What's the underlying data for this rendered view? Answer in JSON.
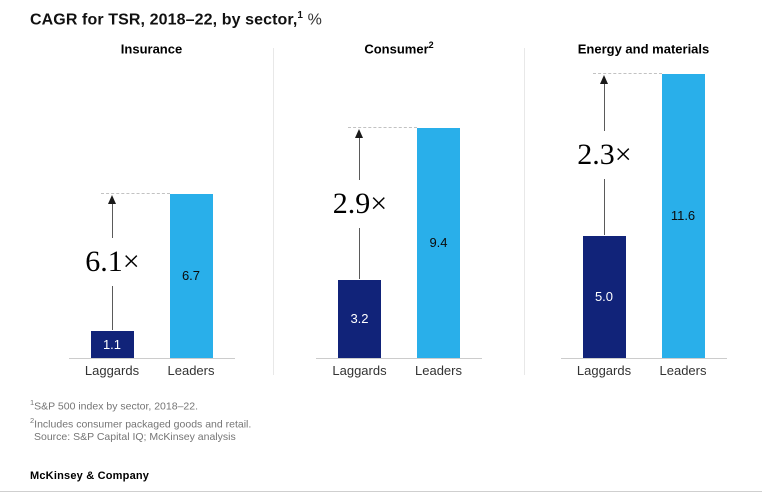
{
  "page": {
    "title": "CAGR for TSR, 2018–22, by sector,",
    "title_sup": "1",
    "title_unit": "%",
    "brand": "McKinsey & Company"
  },
  "footnotes": [
    {
      "sup": "1",
      "text": "S&P 500 index by sector, 2018–22."
    },
    {
      "sup": "2",
      "text": "Includes consumer packaged goods and retail."
    },
    {
      "sup": "",
      "text": "Source: S&P Capital IQ; McKinsey analysis"
    }
  ],
  "colors": {
    "laggards_bar": "#112379",
    "leaders_bar": "#29AFEA",
    "axis_line": "#cccccc",
    "divider": "#e8e8e8",
    "arrow": "#5a5a5a",
    "dashed_line": "#c2c2c2",
    "footnote_text": "#757575"
  },
  "chart_data": [
    {
      "type": "bar",
      "title": "Insurance",
      "title_sup": "",
      "categories": [
        "Laggards",
        "Leaders"
      ],
      "values": [
        1.1,
        6.7
      ],
      "value_labels": [
        "1.1",
        "6.7"
      ],
      "multiplier_label": "6.1×",
      "ylim": [
        0,
        12.2
      ],
      "unit": "%",
      "legend": "none",
      "grid": false
    },
    {
      "type": "bar",
      "title": "Consumer",
      "title_sup": "2",
      "categories": [
        "Laggards",
        "Leaders"
      ],
      "values": [
        3.2,
        9.4
      ],
      "value_labels": [
        "3.2",
        "9.4"
      ],
      "multiplier_label": "2.9×",
      "ylim": [
        0,
        12.2
      ],
      "unit": "%",
      "legend": "none",
      "grid": false
    },
    {
      "type": "bar",
      "title": "Energy and materials",
      "title_sup": "",
      "categories": [
        "Laggards",
        "Leaders"
      ],
      "values": [
        5.0,
        11.6
      ],
      "value_labels": [
        "5.0",
        "11.6"
      ],
      "multiplier_label": "2.3×",
      "ylim": [
        0,
        12.2
      ],
      "unit": "%",
      "legend": "none",
      "grid": false
    }
  ]
}
